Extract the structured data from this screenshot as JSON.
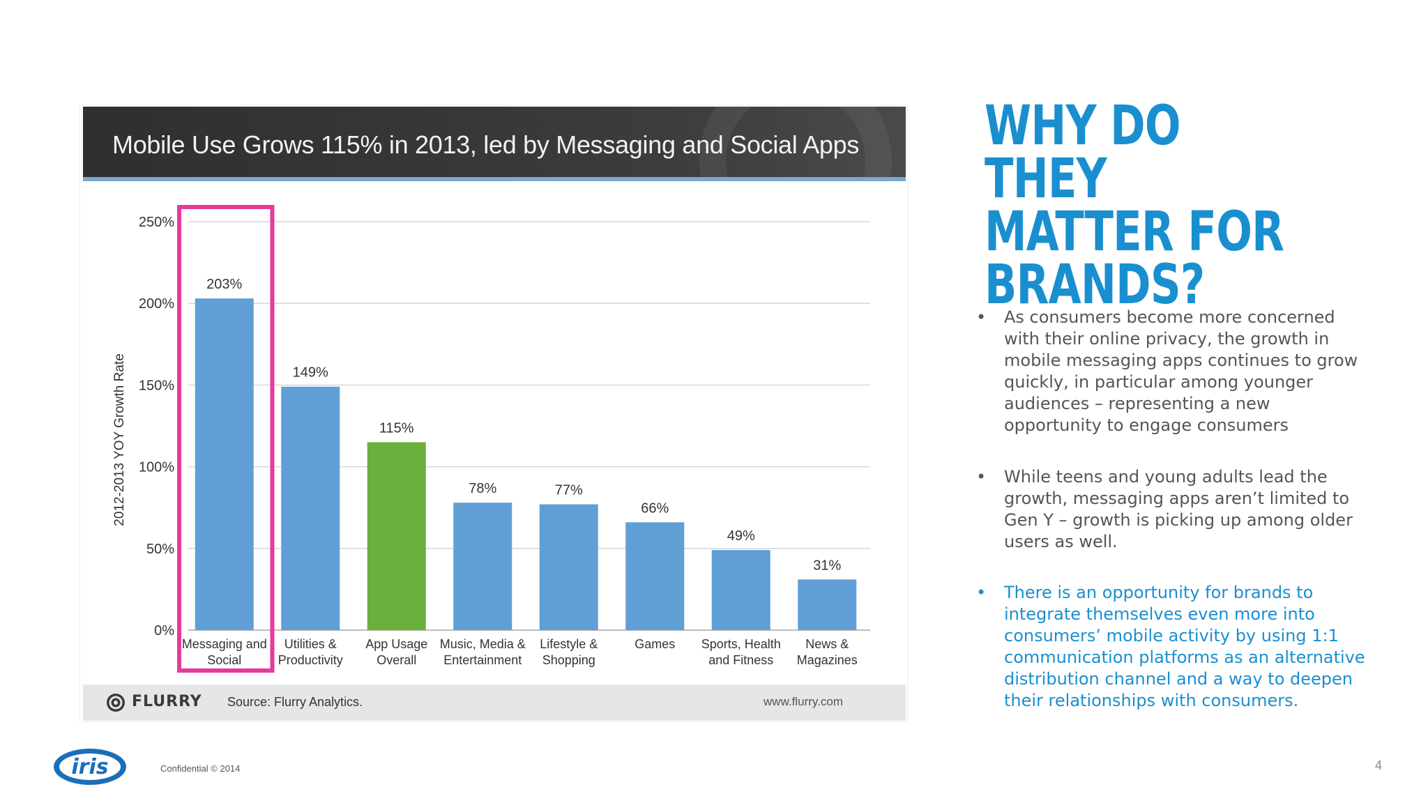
{
  "slide": {
    "heading_lines": [
      "WHY DO THEY",
      "MATTER FOR",
      "BRANDS?"
    ],
    "bullets": [
      "As consumers become more concerned with their online privacy, the growth in mobile messaging apps continues to grow quickly, in particular among younger audiences – representing a new opportunity to engage consumers",
      "While teens and young adults lead the growth, messaging apps aren’t limited to Gen Y – growth is picking up among older users as well.",
      "There is an opportunity for brands to integrate themselves even more into consumers’ mobile activity by using 1:1 communication platforms as an alternative distribution channel and a way to deepen their relationships with consumers."
    ],
    "bullet_symbol": "•",
    "confidential": "Confidential © 2014",
    "page_number": "4",
    "logo_text": "iris",
    "colors": {
      "accent_blue": "#1a8fd0",
      "body_text": "#555555",
      "logo_blue": "#1b6fb8"
    }
  },
  "chart_data": {
    "type": "bar",
    "title": "Mobile Use Grows 115% in 2013, led by Messaging and Social Apps",
    "ylabel": "2012-2013 YOY Growth Rate",
    "xlabel": "",
    "categories": [
      [
        "Messaging and",
        "Social"
      ],
      [
        "Utilities &",
        "Productivity"
      ],
      [
        "App Usage",
        "Overall"
      ],
      [
        "Music, Media &",
        "Entertainment"
      ],
      [
        "Lifestyle &",
        "Shopping"
      ],
      [
        "Games"
      ],
      [
        "Sports, Health",
        "and Fitness"
      ],
      [
        "News &",
        "Magazines"
      ]
    ],
    "values": [
      203,
      149,
      115,
      78,
      77,
      66,
      49,
      31
    ],
    "value_labels": [
      "203%",
      "149%",
      "115%",
      "78%",
      "77%",
      "66%",
      "49%",
      "31%"
    ],
    "ylim": [
      0,
      250
    ],
    "yticks": [
      0,
      50,
      100,
      150,
      200,
      250
    ],
    "ytick_labels": [
      "0%",
      "50%",
      "100%",
      "150%",
      "200%",
      "250%"
    ],
    "grid": true,
    "bar_color": "#5f9fd6",
    "highlight_bar_color": "#6aae3c",
    "highlight_bar_category": "App Usage Overall",
    "highlight_box_color": "#e6399b",
    "highlight_box_category": "Messaging and Social",
    "source": "Source: Flurry Analytics.",
    "brand": "FLURRY",
    "url": "www.flurry.com"
  }
}
